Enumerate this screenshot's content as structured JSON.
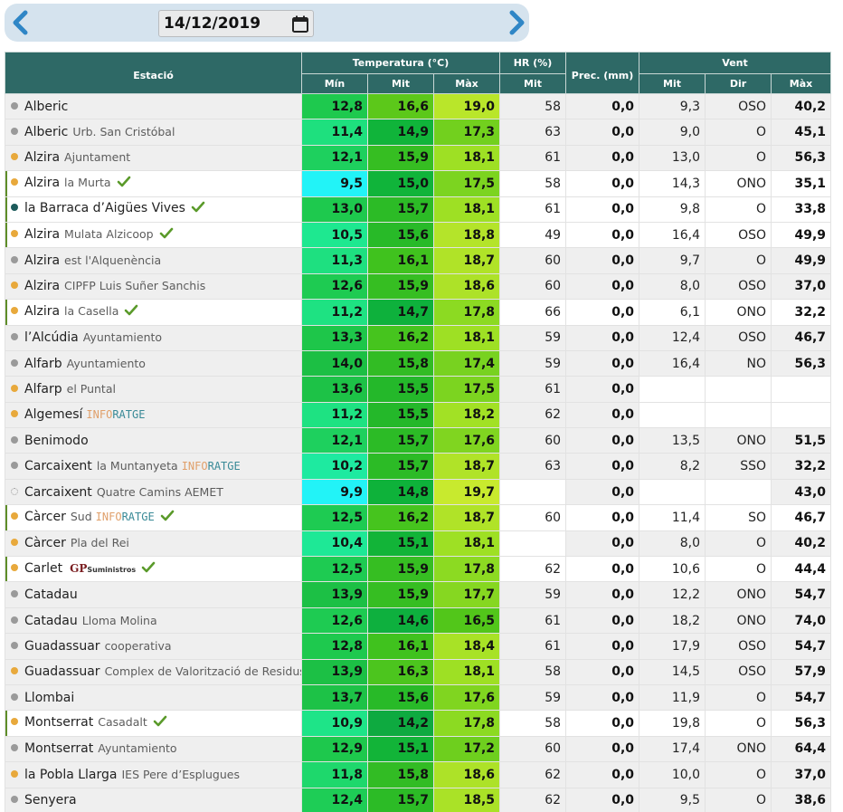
{
  "date": "14/12/2019",
  "header": {
    "station": "Estació",
    "temperature": "Temperatura (°C)",
    "hr": "HR (%)",
    "prec": "Prec. (mm)",
    "wind": "Vent",
    "min": "Mín",
    "mit": "Mit",
    "max": "Màx",
    "hr_mit": "Mit",
    "wind_mit": "Mit",
    "wind_dir": "Dir",
    "wind_max": "Màx"
  },
  "icons": {
    "prev": "chevron-left-icon",
    "next": "chevron-right-icon",
    "calendar": "calendar-icon",
    "check": "check-icon"
  },
  "colors": {
    "header_bg": "#2e6966",
    "nav_bar": "#d5e3ee",
    "arrow": "#2f86c6",
    "check": "#5a9a2a"
  },
  "rows": [
    {
      "name": "Alberic",
      "sub": "",
      "dot": "gray",
      "check": false,
      "hl": false,
      "brand": "",
      "tmin": "12,8",
      "tmit": "16,6",
      "tmax": "19,0",
      "hr": "58",
      "prec": "0,0",
      "wmit": "9,3",
      "wdir": "OSO",
      "wmax": "40,2",
      "cmin": "#1ec94e",
      "cmit": "#5cc81a",
      "cmax": "#b9e62a"
    },
    {
      "name": "Alberic",
      "sub": "Urb. San Cristóbal",
      "dot": "gray",
      "check": false,
      "hl": false,
      "brand": "",
      "tmin": "11,4",
      "tmit": "14,9",
      "tmax": "17,3",
      "hr": "63",
      "prec": "0,0",
      "wmit": "9,0",
      "wdir": "O",
      "wmax": "45,1",
      "cmin": "#1ee07e",
      "cmit": "#10b43a",
      "cmax": "#72d01e"
    },
    {
      "name": "Alzira",
      "sub": "Ajuntament",
      "dot": "orange",
      "check": false,
      "hl": false,
      "brand": "",
      "tmin": "12,1",
      "tmit": "15,9",
      "tmax": "18,1",
      "hr": "61",
      "prec": "0,0",
      "wmit": "13,0",
      "wdir": "O",
      "wmax": "56,3",
      "cmin": "#1ed05e",
      "cmit": "#36be22",
      "cmax": "#9ee024"
    },
    {
      "name": "Alzira",
      "sub": "la Murta",
      "dot": "orange",
      "check": true,
      "hl": true,
      "brand": "",
      "tmin": "9,5",
      "tmit": "15,0",
      "tmax": "17,5",
      "hr": "58",
      "prec": "0,0",
      "wmit": "14,3",
      "wdir": "ONO",
      "wmax": "35,1",
      "cmin": "#22f3f7",
      "cmit": "#10b43a",
      "cmax": "#7cd420"
    },
    {
      "name": "la Barraca d’Aigües Vives",
      "sub": "",
      "dot": "teal",
      "check": true,
      "hl": true,
      "brand": "",
      "tmin": "13,0",
      "tmit": "15,7",
      "tmax": "18,1",
      "hr": "61",
      "prec": "0,0",
      "wmit": "9,8",
      "wdir": "O",
      "wmax": "33,8",
      "cmin": "#1ec94e",
      "cmit": "#2cbb26",
      "cmax": "#9ee024"
    },
    {
      "name": "Alzira",
      "sub": "Mulata Alzicoop",
      "dot": "orange",
      "check": true,
      "hl": true,
      "brand": "",
      "tmin": "10,5",
      "tmit": "15,6",
      "tmax": "18,8",
      "hr": "49",
      "prec": "0,0",
      "wmit": "16,4",
      "wdir": "OSO",
      "wmax": "49,9",
      "cmin": "#1ee890",
      "cmit": "#28ba28",
      "cmax": "#b4e42a"
    },
    {
      "name": "Alzira",
      "sub": "est l'Alquenència",
      "dot": "gray",
      "check": false,
      "hl": false,
      "brand": "",
      "tmin": "11,3",
      "tmit": "16,1",
      "tmax": "18,7",
      "hr": "60",
      "prec": "0,0",
      "wmit": "9,7",
      "wdir": "O",
      "wmax": "49,9",
      "cmin": "#1ee080",
      "cmit": "#40c21e",
      "cmax": "#b0e328"
    },
    {
      "name": "Alzira",
      "sub": "CIPFP Luis Suñer Sanchis",
      "dot": "orange",
      "check": false,
      "hl": false,
      "brand": "",
      "tmin": "12,6",
      "tmit": "15,9",
      "tmax": "18,6",
      "hr": "60",
      "prec": "0,0",
      "wmit": "8,0",
      "wdir": "OSO",
      "wmax": "37,0",
      "cmin": "#1ecb52",
      "cmit": "#36be22",
      "cmax": "#ade228"
    },
    {
      "name": "Alzira",
      "sub": "la Casella",
      "dot": "orange",
      "check": true,
      "hl": true,
      "brand": "",
      "tmin": "11,2",
      "tmit": "14,7",
      "tmax": "17,8",
      "hr": "66",
      "prec": "0,0",
      "wmit": "6,1",
      "wdir": "ONO",
      "wmax": "32,2",
      "cmin": "#1ee282",
      "cmit": "#0eb13c",
      "cmax": "#8cda22"
    },
    {
      "name": "l’Alcúdia",
      "sub": "Ayuntamiento",
      "dot": "gray",
      "check": false,
      "hl": false,
      "brand": "",
      "tmin": "13,3",
      "tmit": "16,2",
      "tmax": "18,1",
      "hr": "59",
      "prec": "0,0",
      "wmit": "12,4",
      "wdir": "OSO",
      "wmax": "46,7",
      "cmin": "#1ec64a",
      "cmit": "#46c41e",
      "cmax": "#9ee024"
    },
    {
      "name": "Alfarb",
      "sub": "Ayuntamiento",
      "dot": "gray",
      "check": false,
      "hl": false,
      "brand": "",
      "tmin": "14,0",
      "tmit": "15,8",
      "tmax": "17,4",
      "hr": "59",
      "prec": "0,0",
      "wmit": "16,4",
      "wdir": "NO",
      "wmax": "56,3",
      "cmin": "#1cbf44",
      "cmit": "#32bc24",
      "cmax": "#78d220"
    },
    {
      "name": "Alfarp",
      "sub": "el Puntal",
      "dot": "orange",
      "check": false,
      "hl": false,
      "brand": "",
      "tmin": "13,6",
      "tmit": "15,5",
      "tmax": "17,5",
      "hr": "61",
      "prec": "0,0",
      "wmit": "",
      "wdir": "",
      "wmax": "",
      "cmin": "#1dc247",
      "cmit": "#24b82a",
      "cmax": "#7cd420",
      "wwhite": true
    },
    {
      "name": "Algemesí",
      "sub": "",
      "dot": "orange",
      "check": false,
      "hl": false,
      "brand": "info",
      "tmin": "11,2",
      "tmit": "15,5",
      "tmax": "18,2",
      "hr": "62",
      "prec": "0,0",
      "wmit": "",
      "wdir": "",
      "wmax": "",
      "cmin": "#1ee282",
      "cmit": "#24b82a",
      "cmax": "#a2e125",
      "wwhite": true
    },
    {
      "name": "Benimodo",
      "sub": "",
      "dot": "gray",
      "check": false,
      "hl": false,
      "brand": "",
      "tmin": "12,1",
      "tmit": "15,7",
      "tmax": "17,6",
      "hr": "60",
      "prec": "0,0",
      "wmit": "13,5",
      "wdir": "ONO",
      "wmax": "51,5",
      "cmin": "#1ed05e",
      "cmit": "#2cbb26",
      "cmax": "#80d520"
    },
    {
      "name": "Carcaixent",
      "sub": "la Muntanyeta",
      "dot": "gray",
      "check": false,
      "hl": false,
      "brand": "info",
      "tmin": "10,2",
      "tmit": "15,7",
      "tmax": "18,7",
      "hr": "63",
      "prec": "0,0",
      "wmit": "8,2",
      "wdir": "SSO",
      "wmax": "32,2",
      "cmin": "#1eeaa0",
      "cmit": "#2cbb26",
      "cmax": "#b0e328"
    },
    {
      "name": "Carcaixent",
      "sub": "Quatre Camins AEMET",
      "dot": "empty",
      "check": false,
      "hl": false,
      "brand": "",
      "tmin": "9,9",
      "tmit": "14,8",
      "tmax": "19,7",
      "hr": "",
      "prec": "0,0",
      "wmit": "",
      "wdir": "",
      "wmax": "43,0",
      "cmin": "#22f3f7",
      "cmit": "#0eb23a",
      "cmax": "#c8ea2e",
      "hrwhite": true,
      "wwhite2": true
    },
    {
      "name": "Càrcer",
      "sub": "Sud",
      "dot": "orange",
      "check": true,
      "hl": true,
      "brand": "info",
      "tmin": "12,5",
      "tmit": "16,2",
      "tmax": "18,7",
      "hr": "60",
      "prec": "0,0",
      "wmit": "11,4",
      "wdir": "SO",
      "wmax": "46,7",
      "cmin": "#1ecb52",
      "cmit": "#46c41e",
      "cmax": "#b0e328"
    },
    {
      "name": "Càrcer",
      "sub": "Pla del Rei",
      "dot": "orange",
      "check": false,
      "hl": false,
      "brand": "",
      "tmin": "10,4",
      "tmit": "15,1",
      "tmax": "18,1",
      "hr": "",
      "prec": "0,0",
      "wmit": "8,0",
      "wdir": "O",
      "wmax": "40,2",
      "cmin": "#1ee896",
      "cmit": "#12b438",
      "cmax": "#9ee024",
      "hrwhite": true
    },
    {
      "name": "Carlet",
      "sub": "",
      "dot": "orange",
      "check": true,
      "hl": true,
      "brand": "gp",
      "tmin": "12,5",
      "tmit": "15,9",
      "tmax": "17,8",
      "hr": "62",
      "prec": "0,0",
      "wmit": "10,6",
      "wdir": "O",
      "wmax": "44,4",
      "cmin": "#1ecb52",
      "cmit": "#36be22",
      "cmax": "#8cda22"
    },
    {
      "name": "Catadau",
      "sub": "",
      "dot": "gray",
      "check": false,
      "hl": false,
      "brand": "",
      "tmin": "13,9",
      "tmit": "15,9",
      "tmax": "17,7",
      "hr": "59",
      "prec": "0,0",
      "wmit": "12,2",
      "wdir": "ONO",
      "wmax": "54,7",
      "cmin": "#1cc045",
      "cmit": "#36be22",
      "cmax": "#86d721"
    },
    {
      "name": "Catadau",
      "sub": "Lloma Molina",
      "dot": "gray",
      "check": false,
      "hl": false,
      "brand": "",
      "tmin": "12,6",
      "tmit": "14,6",
      "tmax": "16,5",
      "hr": "61",
      "prec": "0,0",
      "wmit": "18,2",
      "wdir": "ONO",
      "wmax": "74,0",
      "cmin": "#1ecb52",
      "cmit": "#0eb03e",
      "cmax": "#52c61a"
    },
    {
      "name": "Guadassuar",
      "sub": "cooperativa",
      "dot": "gray",
      "check": false,
      "hl": false,
      "brand": "",
      "tmin": "12,8",
      "tmit": "16,1",
      "tmax": "18,4",
      "hr": "61",
      "prec": "0,0",
      "wmit": "17,9",
      "wdir": "OSO",
      "wmax": "54,7",
      "cmin": "#1ec94e",
      "cmit": "#40c21e",
      "cmax": "#a8e226"
    },
    {
      "name": "Guadassuar",
      "sub": "Complex de Valorització de Residus",
      "dot": "orange",
      "check": false,
      "hl": false,
      "brand": "",
      "tmin": "13,9",
      "tmit": "16,3",
      "tmax": "18,1",
      "hr": "58",
      "prec": "0,0",
      "wmit": "14,5",
      "wdir": "OSO",
      "wmax": "57,9",
      "cmin": "#1cc045",
      "cmit": "#4cc51e",
      "cmax": "#9ee024"
    },
    {
      "name": "Llombai",
      "sub": "",
      "dot": "gray",
      "check": false,
      "hl": false,
      "brand": "",
      "tmin": "13,7",
      "tmit": "15,6",
      "tmax": "17,6",
      "hr": "59",
      "prec": "0,0",
      "wmit": "11,9",
      "wdir": "O",
      "wmax": "54,7",
      "cmin": "#1dc247",
      "cmit": "#28ba28",
      "cmax": "#80d520"
    },
    {
      "name": "Montserrat",
      "sub": "Casadalt",
      "dot": "orange",
      "check": true,
      "hl": true,
      "brand": "",
      "tmin": "10,9",
      "tmit": "14,2",
      "tmax": "17,8",
      "hr": "58",
      "prec": "0,0",
      "wmit": "19,8",
      "wdir": "O",
      "wmax": "56,3",
      "cmin": "#1ee488",
      "cmit": "#0eaa40",
      "cmax": "#8cda22"
    },
    {
      "name": "Montserrat",
      "sub": "Ayuntamiento",
      "dot": "gray",
      "check": false,
      "hl": false,
      "brand": "",
      "tmin": "12,9",
      "tmit": "15,1",
      "tmax": "17,2",
      "hr": "60",
      "prec": "0,0",
      "wmit": "17,4",
      "wdir": "ONO",
      "wmax": "64,4",
      "cmin": "#1ec84d",
      "cmit": "#12b438",
      "cmax": "#6ecf1e"
    },
    {
      "name": "la Pobla Llarga",
      "sub": "IES Pere d’Esplugues",
      "dot": "orange",
      "check": false,
      "hl": false,
      "brand": "",
      "tmin": "11,8",
      "tmit": "15,8",
      "tmax": "18,6",
      "hr": "62",
      "prec": "0,0",
      "wmit": "10,0",
      "wdir": "O",
      "wmax": "37,0",
      "cmin": "#1ed86c",
      "cmit": "#32bc24",
      "cmax": "#ade228"
    },
    {
      "name": "Senyera",
      "sub": "",
      "dot": "gray",
      "check": false,
      "hl": false,
      "brand": "",
      "tmin": "12,4",
      "tmit": "15,7",
      "tmax": "18,5",
      "hr": "62",
      "prec": "0,0",
      "wmit": "9,5",
      "wdir": "O",
      "wmax": "38,6",
      "cmin": "#1ecd56",
      "cmit": "#2cbb26",
      "cmax": "#aae227"
    }
  ]
}
